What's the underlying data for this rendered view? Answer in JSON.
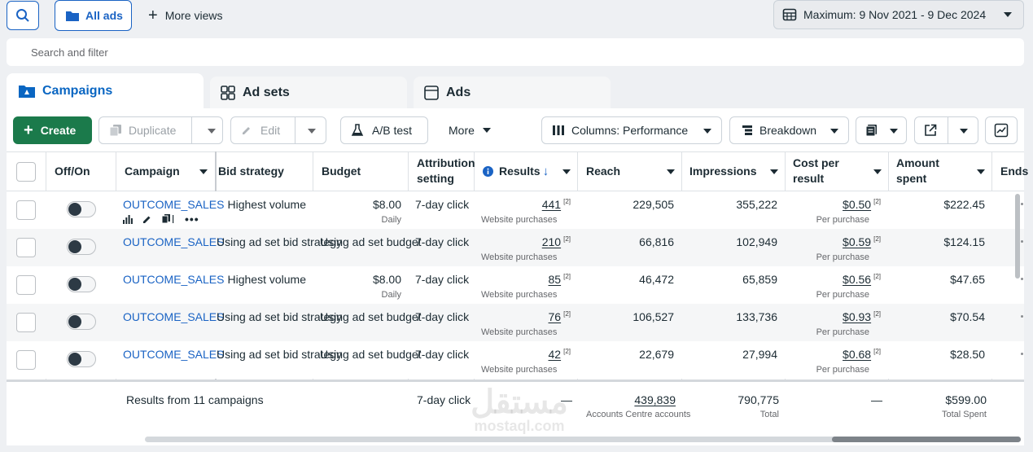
{
  "top": {
    "all_ads": "All ads",
    "more_views": "More views",
    "date_range": "Maximum: 9 Nov 2021 - 9 Dec 2024",
    "search_placeholder": "Search and filter"
  },
  "tabs": [
    {
      "label": "Campaigns"
    },
    {
      "label": "Ad sets"
    },
    {
      "label": "Ads"
    }
  ],
  "toolbar": {
    "create": "Create",
    "duplicate": "Duplicate",
    "edit": "Edit",
    "ab_test": "A/B test",
    "more": "More",
    "columns": "Columns: Performance",
    "breakdown": "Breakdown"
  },
  "columns": {
    "offon": "Off/On",
    "campaign": "Campaign",
    "bid": "Bid strategy",
    "budget": "Budget",
    "attr1": "Attribution",
    "attr2": "setting",
    "results": "Results",
    "reach": "Reach",
    "impressions": "Impressions",
    "cpr1": "Cost per",
    "cpr2": "result",
    "spent1": "Amount",
    "spent2": "spent",
    "ends": "Ends"
  },
  "rows": [
    {
      "campaign": "OUTCOME_SALES",
      "bid": "Highest volume",
      "budget": "$8.00",
      "budget_sub": "Daily",
      "attr": "7-day click",
      "results": "441",
      "note": "[2]",
      "results_sub": "Website purchases",
      "reach": "229,505",
      "impressions": "355,222",
      "cpr": "$0.50",
      "cpr_sub": "Per purchase",
      "spent": "$222.45"
    },
    {
      "campaign": "OUTCOME_SALES",
      "bid": "Using ad set bid strategy",
      "budget": "Using ad set budget",
      "budget_sub": "",
      "attr": "7-day click",
      "results": "210",
      "note": "[2]",
      "results_sub": "Website purchases",
      "reach": "66,816",
      "impressions": "102,949",
      "cpr": "$0.59",
      "cpr_sub": "Per purchase",
      "spent": "$124.15"
    },
    {
      "campaign": "OUTCOME_SALES",
      "bid": "Highest volume",
      "budget": "$8.00",
      "budget_sub": "Daily",
      "attr": "7-day click",
      "results": "85",
      "note": "[2]",
      "results_sub": "Website purchases",
      "reach": "46,472",
      "impressions": "65,859",
      "cpr": "$0.56",
      "cpr_sub": "Per purchase",
      "spent": "$47.65"
    },
    {
      "campaign": "OUTCOME_SALES",
      "bid": "Using ad set bid strategy",
      "budget": "Using ad set budget",
      "budget_sub": "",
      "attr": "7-day click",
      "results": "76",
      "note": "[2]",
      "results_sub": "Website purchases",
      "reach": "106,527",
      "impressions": "133,736",
      "cpr": "$0.93",
      "cpr_sub": "Per purchase",
      "spent": "$70.54"
    },
    {
      "campaign": "OUTCOME_SALES",
      "bid": "Using ad set bid strategy",
      "budget": "Using ad set budget",
      "budget_sub": "",
      "attr": "7-day click",
      "results": "42",
      "note": "[2]",
      "results_sub": "Website purchases",
      "reach": "22,679",
      "impressions": "27,994",
      "cpr": "$0.68",
      "cpr_sub": "Per purchase",
      "spent": "$28.50"
    }
  ],
  "totals": {
    "label": "Results from 11 campaigns",
    "attr": "7-day click",
    "results": "—",
    "reach": "439,839",
    "reach_sub": "Accounts Centre accounts",
    "impressions": "790,775",
    "impressions_sub": "Total",
    "cpr": "—",
    "spent": "$599.00",
    "spent_sub": "Total Spent"
  },
  "watermark": {
    "text1": "مستقل",
    "text2": "mostaql.com"
  },
  "colors": {
    "accent": "#0a66c2",
    "create_green": "#1b7a4b",
    "link": "#1a63c4"
  }
}
